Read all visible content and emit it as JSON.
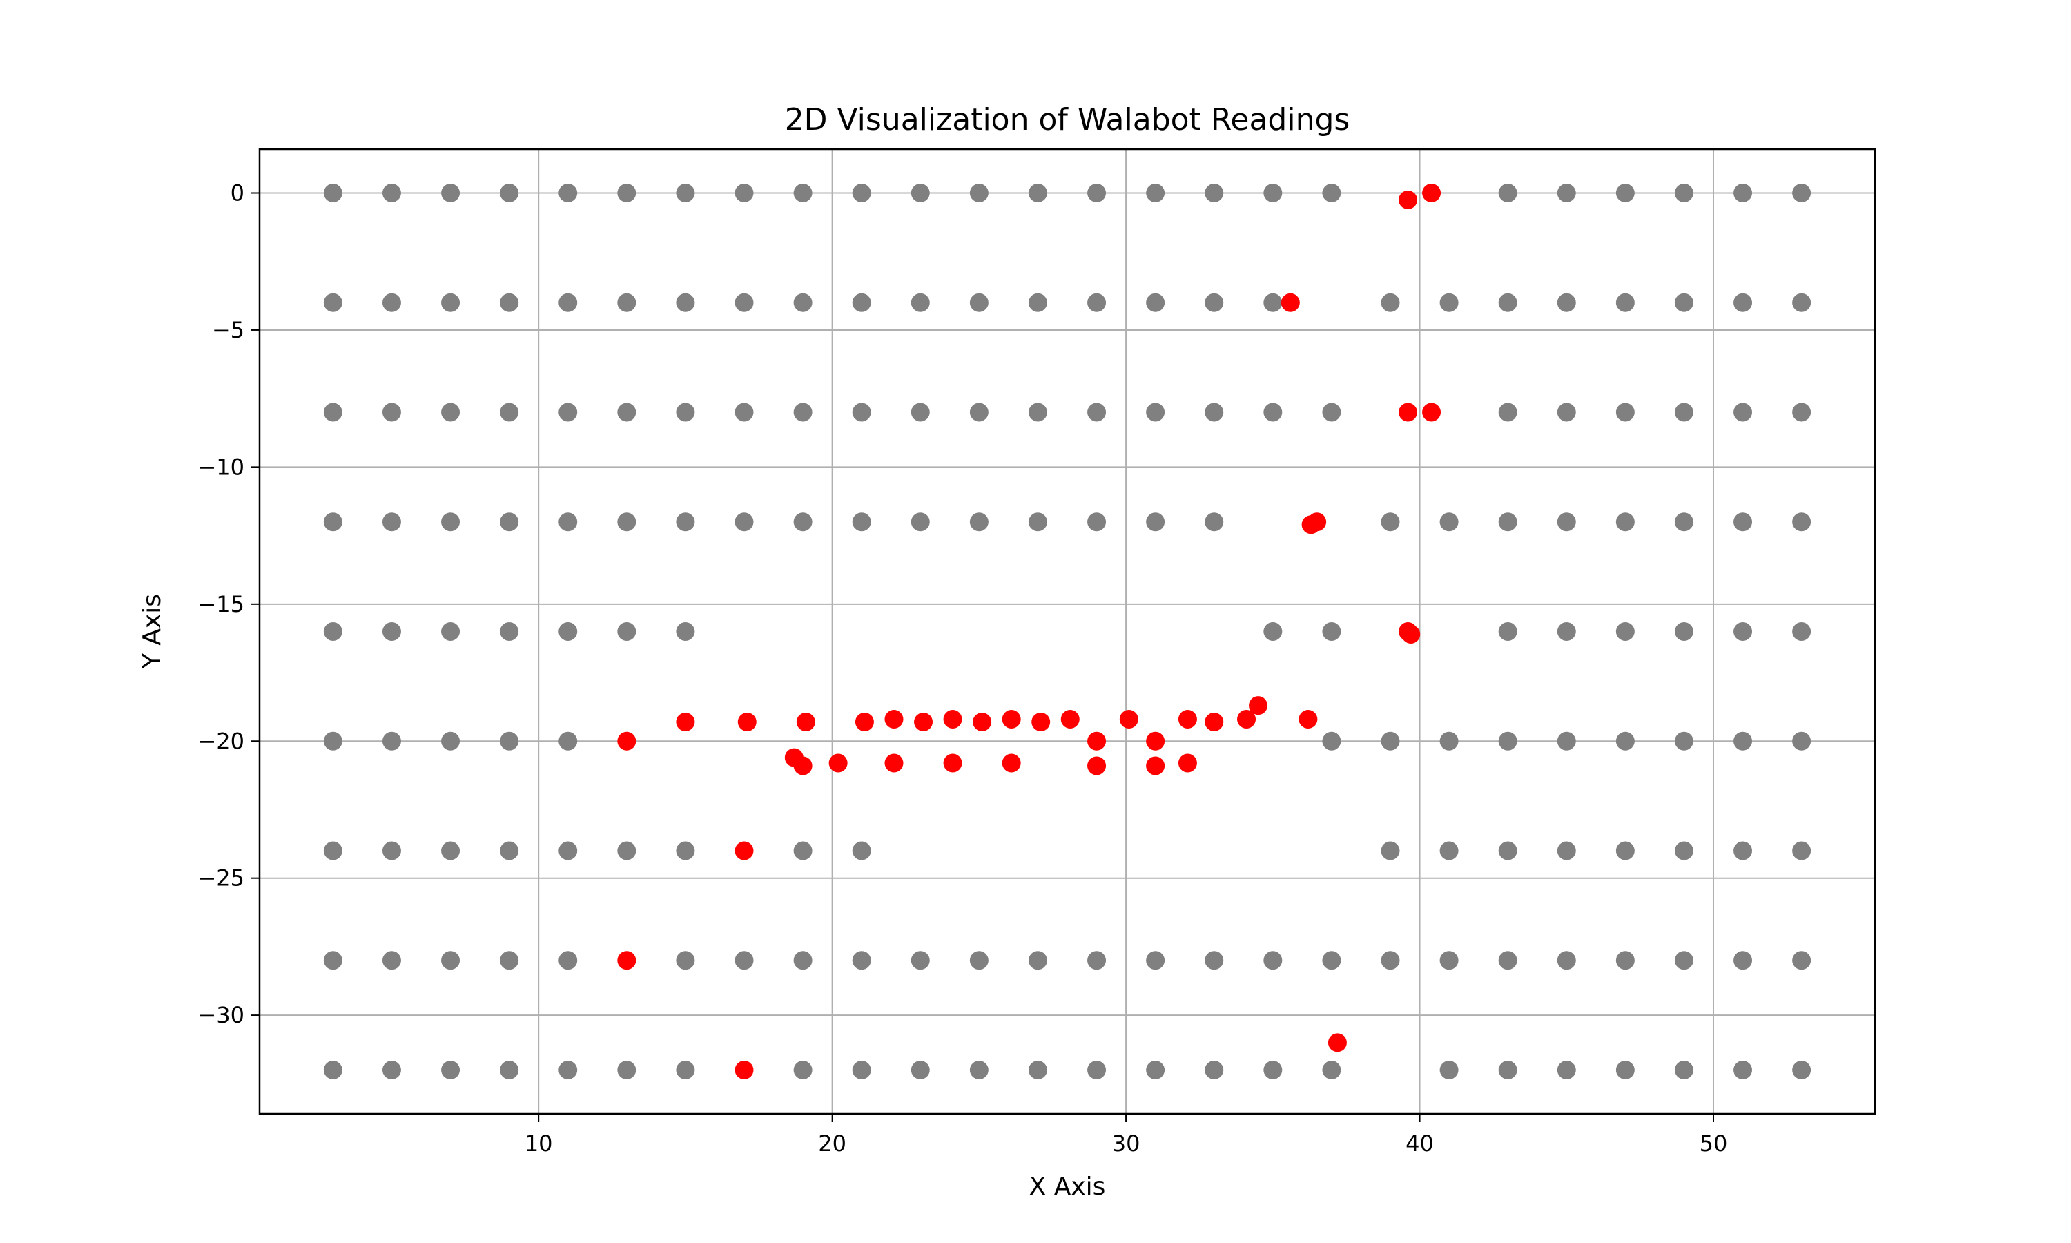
{
  "chart_data": {
    "type": "scatter",
    "title": "2D Visualization of Walabot Readings",
    "xlabel": "X Axis",
    "ylabel": "Y Axis",
    "xlim": [
      0.5,
      55.5
    ],
    "ylim": [
      -33.6,
      1.6
    ],
    "x_ticks": [
      10,
      20,
      30,
      40,
      50
    ],
    "y_ticks": [
      0,
      -5,
      -10,
      -15,
      -20,
      -25,
      -30
    ],
    "x_tick_labels": [
      "10",
      "20",
      "30",
      "40",
      "50"
    ],
    "y_tick_labels": [
      "0",
      "−5",
      "−10",
      "−15",
      "−20",
      "−25",
      "−30"
    ],
    "grid": true,
    "colors": {
      "grid_points": "#808080",
      "readings": "#ff0000",
      "grid_lines": "#b0b0b0"
    },
    "series": [
      {
        "color": "#808080",
        "points": [
          [
            3,
            0
          ],
          [
            5,
            0
          ],
          [
            7,
            0
          ],
          [
            9,
            0
          ],
          [
            11,
            0
          ],
          [
            13,
            0
          ],
          [
            15,
            0
          ],
          [
            17,
            0
          ],
          [
            19,
            0
          ],
          [
            21,
            0
          ],
          [
            23,
            0
          ],
          [
            25,
            0
          ],
          [
            27,
            0
          ],
          [
            29,
            0
          ],
          [
            31,
            0
          ],
          [
            33,
            0
          ],
          [
            35,
            0
          ],
          [
            37,
            0
          ],
          [
            43,
            0
          ],
          [
            45,
            0
          ],
          [
            47,
            0
          ],
          [
            49,
            0
          ],
          [
            51,
            0
          ],
          [
            53,
            0
          ],
          [
            3,
            -4
          ],
          [
            5,
            -4
          ],
          [
            7,
            -4
          ],
          [
            9,
            -4
          ],
          [
            11,
            -4
          ],
          [
            13,
            -4
          ],
          [
            15,
            -4
          ],
          [
            17,
            -4
          ],
          [
            19,
            -4
          ],
          [
            21,
            -4
          ],
          [
            23,
            -4
          ],
          [
            25,
            -4
          ],
          [
            27,
            -4
          ],
          [
            29,
            -4
          ],
          [
            31,
            -4
          ],
          [
            33,
            -4
          ],
          [
            35,
            -4
          ],
          [
            39,
            -4
          ],
          [
            41,
            -4
          ],
          [
            43,
            -4
          ],
          [
            45,
            -4
          ],
          [
            47,
            -4
          ],
          [
            49,
            -4
          ],
          [
            51,
            -4
          ],
          [
            53,
            -4
          ],
          [
            3,
            -8
          ],
          [
            5,
            -8
          ],
          [
            7,
            -8
          ],
          [
            9,
            -8
          ],
          [
            11,
            -8
          ],
          [
            13,
            -8
          ],
          [
            15,
            -8
          ],
          [
            17,
            -8
          ],
          [
            19,
            -8
          ],
          [
            21,
            -8
          ],
          [
            23,
            -8
          ],
          [
            25,
            -8
          ],
          [
            27,
            -8
          ],
          [
            29,
            -8
          ],
          [
            31,
            -8
          ],
          [
            33,
            -8
          ],
          [
            35,
            -8
          ],
          [
            37,
            -8
          ],
          [
            43,
            -8
          ],
          [
            45,
            -8
          ],
          [
            47,
            -8
          ],
          [
            49,
            -8
          ],
          [
            51,
            -8
          ],
          [
            53,
            -8
          ],
          [
            3,
            -12
          ],
          [
            5,
            -12
          ],
          [
            7,
            -12
          ],
          [
            9,
            -12
          ],
          [
            11,
            -12
          ],
          [
            13,
            -12
          ],
          [
            15,
            -12
          ],
          [
            17,
            -12
          ],
          [
            19,
            -12
          ],
          [
            21,
            -12
          ],
          [
            23,
            -12
          ],
          [
            25,
            -12
          ],
          [
            27,
            -12
          ],
          [
            29,
            -12
          ],
          [
            31,
            -12
          ],
          [
            33,
            -12
          ],
          [
            39,
            -12
          ],
          [
            41,
            -12
          ],
          [
            43,
            -12
          ],
          [
            45,
            -12
          ],
          [
            47,
            -12
          ],
          [
            49,
            -12
          ],
          [
            51,
            -12
          ],
          [
            53,
            -12
          ],
          [
            3,
            -16
          ],
          [
            5,
            -16
          ],
          [
            7,
            -16
          ],
          [
            9,
            -16
          ],
          [
            11,
            -16
          ],
          [
            13,
            -16
          ],
          [
            15,
            -16
          ],
          [
            35,
            -16
          ],
          [
            37,
            -16
          ],
          [
            43,
            -16
          ],
          [
            45,
            -16
          ],
          [
            47,
            -16
          ],
          [
            49,
            -16
          ],
          [
            51,
            -16
          ],
          [
            53,
            -16
          ],
          [
            3,
            -20
          ],
          [
            5,
            -20
          ],
          [
            7,
            -20
          ],
          [
            9,
            -20
          ],
          [
            11,
            -20
          ],
          [
            37,
            -20
          ],
          [
            39,
            -20
          ],
          [
            41,
            -20
          ],
          [
            43,
            -20
          ],
          [
            45,
            -20
          ],
          [
            47,
            -20
          ],
          [
            49,
            -20
          ],
          [
            51,
            -20
          ],
          [
            53,
            -20
          ],
          [
            3,
            -24
          ],
          [
            5,
            -24
          ],
          [
            7,
            -24
          ],
          [
            9,
            -24
          ],
          [
            11,
            -24
          ],
          [
            13,
            -24
          ],
          [
            15,
            -24
          ],
          [
            19,
            -24
          ],
          [
            21,
            -24
          ],
          [
            39,
            -24
          ],
          [
            41,
            -24
          ],
          [
            43,
            -24
          ],
          [
            45,
            -24
          ],
          [
            47,
            -24
          ],
          [
            49,
            -24
          ],
          [
            51,
            -24
          ],
          [
            53,
            -24
          ],
          [
            3,
            -28
          ],
          [
            5,
            -28
          ],
          [
            7,
            -28
          ],
          [
            9,
            -28
          ],
          [
            11,
            -28
          ],
          [
            15,
            -28
          ],
          [
            17,
            -28
          ],
          [
            19,
            -28
          ],
          [
            21,
            -28
          ],
          [
            23,
            -28
          ],
          [
            25,
            -28
          ],
          [
            27,
            -28
          ],
          [
            29,
            -28
          ],
          [
            31,
            -28
          ],
          [
            33,
            -28
          ],
          [
            35,
            -28
          ],
          [
            37,
            -28
          ],
          [
            39,
            -28
          ],
          [
            41,
            -28
          ],
          [
            43,
            -28
          ],
          [
            45,
            -28
          ],
          [
            47,
            -28
          ],
          [
            49,
            -28
          ],
          [
            51,
            -28
          ],
          [
            53,
            -28
          ],
          [
            3,
            -32
          ],
          [
            5,
            -32
          ],
          [
            7,
            -32
          ],
          [
            9,
            -32
          ],
          [
            11,
            -32
          ],
          [
            13,
            -32
          ],
          [
            15,
            -32
          ],
          [
            19,
            -32
          ],
          [
            21,
            -32
          ],
          [
            23,
            -32
          ],
          [
            25,
            -32
          ],
          [
            27,
            -32
          ],
          [
            29,
            -32
          ],
          [
            31,
            -32
          ],
          [
            33,
            -32
          ],
          [
            35,
            -32
          ],
          [
            37,
            -32
          ],
          [
            41,
            -32
          ],
          [
            43,
            -32
          ],
          [
            45,
            -32
          ],
          [
            47,
            -32
          ],
          [
            49,
            -32
          ],
          [
            51,
            -32
          ],
          [
            53,
            -32
          ]
        ]
      },
      {
        "color": "#ff0000",
        "points": [
          [
            39.6,
            -0.25
          ],
          [
            40.4,
            0
          ],
          [
            35.6,
            -4
          ],
          [
            39.6,
            -8
          ],
          [
            40.4,
            -8
          ],
          [
            36.3,
            -12.1
          ],
          [
            36.5,
            -12
          ],
          [
            39.6,
            -16
          ],
          [
            39.7,
            -16.1
          ],
          [
            13,
            -20
          ],
          [
            15,
            -19.3
          ],
          [
            17.1,
            -19.3
          ],
          [
            19.1,
            -19.3
          ],
          [
            18.7,
            -20.6
          ],
          [
            19,
            -20.9
          ],
          [
            20.2,
            -20.8
          ],
          [
            21.1,
            -19.3
          ],
          [
            22.1,
            -19.2
          ],
          [
            22.1,
            -20.8
          ],
          [
            23.1,
            -19.3
          ],
          [
            24.1,
            -19.2
          ],
          [
            24.1,
            -20.8
          ],
          [
            25.1,
            -19.3
          ],
          [
            26.1,
            -19.2
          ],
          [
            26.1,
            -20.8
          ],
          [
            27.1,
            -19.3
          ],
          [
            28.1,
            -19.2
          ],
          [
            29,
            -20
          ],
          [
            29,
            -20.9
          ],
          [
            30.1,
            -19.2
          ],
          [
            31,
            -20
          ],
          [
            31,
            -20.9
          ],
          [
            32.1,
            -19.2
          ],
          [
            32.1,
            -20.8
          ],
          [
            33,
            -19.3
          ],
          [
            34.1,
            -19.2
          ],
          [
            34.5,
            -18.7
          ],
          [
            36.2,
            -19.2
          ],
          [
            17,
            -24
          ],
          [
            13,
            -28
          ],
          [
            37.2,
            -31
          ],
          [
            17,
            -32
          ]
        ]
      }
    ]
  }
}
